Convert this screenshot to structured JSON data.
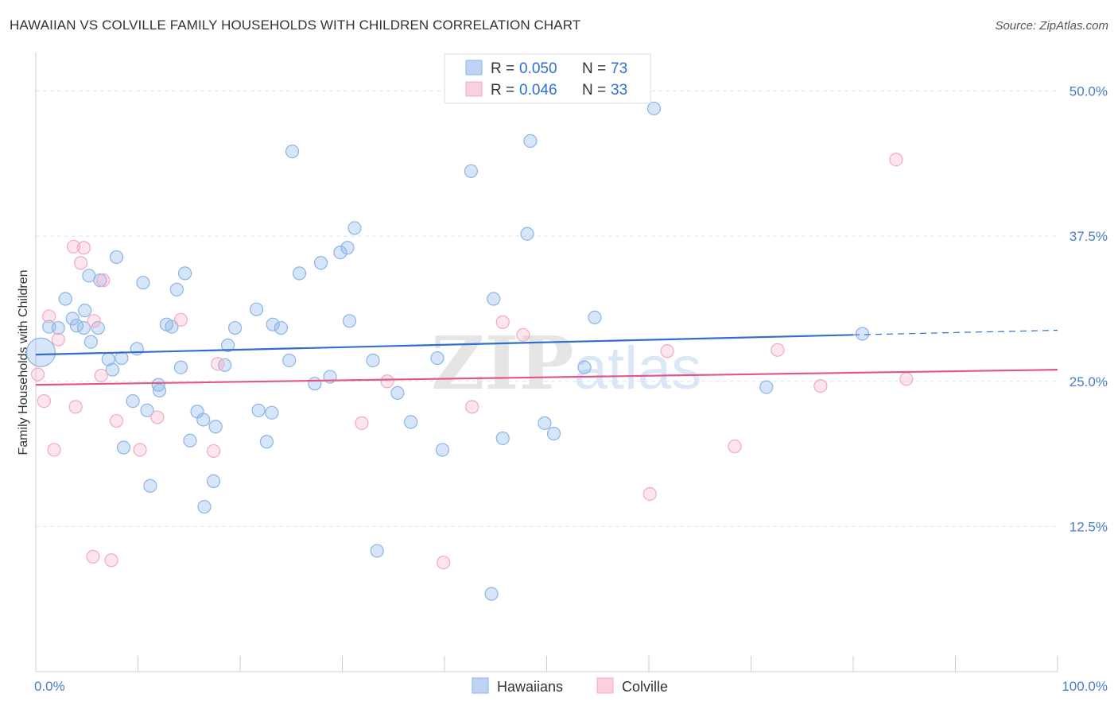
{
  "title": "HAWAIIAN VS COLVILLE FAMILY HOUSEHOLDS WITH CHILDREN CORRELATION CHART",
  "source": "Source: ZipAtlas.com",
  "watermark": {
    "zip": "ZIP",
    "atlas": "atlas"
  },
  "chart_data": {
    "type": "scatter",
    "ylabel": "Family Households with Children",
    "xlim": [
      0,
      100
    ],
    "ylim": [
      0,
      52.5
    ],
    "x_tick_labels": [
      "0.0%",
      "100.0%"
    ],
    "y_ticks": [
      12.5,
      25.0,
      37.5,
      50.0
    ],
    "y_tick_labels": [
      "12.5%",
      "25.0%",
      "37.5%",
      "50.0%"
    ],
    "grid": true,
    "legend": {
      "placement": "top-center",
      "entries": [
        {
          "r_label": "R = ",
          "r_value": "0.050",
          "n_label": "N = ",
          "n_value": "73"
        },
        {
          "r_label": "R = ",
          "r_value": "0.046",
          "n_label": "N = ",
          "n_value": "33"
        }
      ]
    },
    "series": [
      {
        "name": "Hawaiians",
        "color": "#8ab4e8",
        "line_color": "#2e6fd1",
        "trend": {
          "x0": 0,
          "y0": 27.3,
          "x1": 80,
          "y1": 29.0,
          "dashed_to_x": 100,
          "dashed_to_y": 29.4
        },
        "points": [
          [
            0.5,
            27.5
          ],
          [
            1.3,
            29.7
          ],
          [
            2.2,
            29.6
          ],
          [
            2.9,
            32.1
          ],
          [
            4.0,
            29.8
          ],
          [
            3.6,
            30.4
          ],
          [
            4.7,
            29.6
          ],
          [
            5.2,
            34.1
          ],
          [
            4.8,
            31.1
          ],
          [
            5.4,
            28.4
          ],
          [
            6.3,
            33.7
          ],
          [
            6.1,
            29.6
          ],
          [
            7.1,
            26.9
          ],
          [
            7.5,
            26.0
          ],
          [
            7.9,
            35.7
          ],
          [
            8.4,
            27.0
          ],
          [
            8.6,
            19.3
          ],
          [
            9.5,
            23.3
          ],
          [
            9.9,
            27.8
          ],
          [
            10.5,
            33.5
          ],
          [
            10.9,
            22.5
          ],
          [
            11.2,
            16.0
          ],
          [
            12.0,
            24.7
          ],
          [
            12.1,
            24.2
          ],
          [
            12.8,
            29.9
          ],
          [
            13.3,
            29.7
          ],
          [
            13.8,
            32.9
          ],
          [
            14.2,
            26.2
          ],
          [
            14.6,
            34.3
          ],
          [
            15.1,
            19.9
          ],
          [
            15.8,
            22.4
          ],
          [
            16.4,
            21.7
          ],
          [
            16.5,
            14.2
          ],
          [
            17.4,
            16.4
          ],
          [
            17.6,
            21.1
          ],
          [
            18.5,
            26.4
          ],
          [
            18.8,
            28.1
          ],
          [
            19.5,
            29.6
          ],
          [
            21.6,
            31.2
          ],
          [
            21.8,
            22.5
          ],
          [
            22.6,
            19.8
          ],
          [
            23.1,
            22.3
          ],
          [
            23.2,
            29.9
          ],
          [
            24.0,
            29.6
          ],
          [
            24.8,
            26.8
          ],
          [
            25.1,
            44.8
          ],
          [
            25.8,
            34.3
          ],
          [
            27.3,
            24.8
          ],
          [
            27.9,
            35.2
          ],
          [
            28.8,
            25.4
          ],
          [
            29.8,
            36.1
          ],
          [
            30.5,
            36.5
          ],
          [
            30.7,
            30.2
          ],
          [
            31.2,
            38.2
          ],
          [
            33.0,
            26.8
          ],
          [
            33.4,
            10.4
          ],
          [
            35.4,
            24.0
          ],
          [
            36.7,
            21.5
          ],
          [
            39.3,
            27.0
          ],
          [
            39.8,
            19.1
          ],
          [
            42.6,
            43.1
          ],
          [
            44.6,
            6.7
          ],
          [
            44.8,
            32.1
          ],
          [
            45.7,
            20.1
          ],
          [
            48.1,
            37.7
          ],
          [
            48.4,
            45.7
          ],
          [
            49.8,
            21.4
          ],
          [
            50.7,
            20.5
          ],
          [
            53.7,
            26.2
          ],
          [
            54.7,
            30.5
          ],
          [
            60.5,
            48.5
          ],
          [
            71.5,
            24.5
          ],
          [
            80.9,
            29.1
          ]
        ]
      },
      {
        "name": "Colville",
        "color": "#f4a8c0",
        "line_color": "#e0588a",
        "trend": {
          "x0": 0,
          "y0": 24.7,
          "x1": 100,
          "y1": 26.0
        },
        "points": [
          [
            0.2,
            25.6
          ],
          [
            0.8,
            23.3
          ],
          [
            1.3,
            30.6
          ],
          [
            1.8,
            19.1
          ],
          [
            2.2,
            28.6
          ],
          [
            3.7,
            36.6
          ],
          [
            3.9,
            22.8
          ],
          [
            4.4,
            35.2
          ],
          [
            4.7,
            36.5
          ],
          [
            5.6,
            9.9
          ],
          [
            5.7,
            30.2
          ],
          [
            6.4,
            25.5
          ],
          [
            6.6,
            33.7
          ],
          [
            7.4,
            9.6
          ],
          [
            7.9,
            21.6
          ],
          [
            10.2,
            19.1
          ],
          [
            11.9,
            21.9
          ],
          [
            14.2,
            30.3
          ],
          [
            17.4,
            19.0
          ],
          [
            17.8,
            26.5
          ],
          [
            31.9,
            21.4
          ],
          [
            34.4,
            25.0
          ],
          [
            39.9,
            9.4
          ],
          [
            42.7,
            22.8
          ],
          [
            45.7,
            30.1
          ],
          [
            47.7,
            29.0
          ],
          [
            60.1,
            15.3
          ],
          [
            61.8,
            27.6
          ],
          [
            68.4,
            19.4
          ],
          [
            72.6,
            27.7
          ],
          [
            76.8,
            24.6
          ],
          [
            84.2,
            44.1
          ],
          [
            85.2,
            25.2
          ]
        ]
      }
    ]
  }
}
